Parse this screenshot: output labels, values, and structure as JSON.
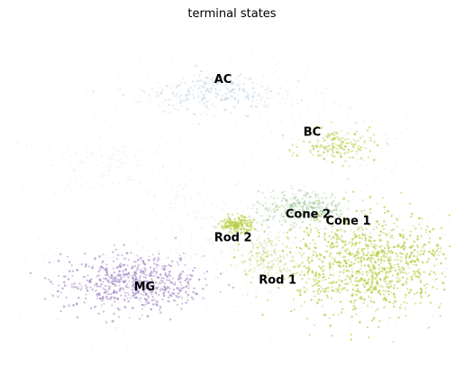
{
  "chart_data": {
    "type": "scatter",
    "title": "terminal states",
    "xlabel": "",
    "ylabel": "",
    "axes_visible": false,
    "grid": false,
    "legend": "on data",
    "embedding": "UMAP",
    "xlim": [
      0,
      100
    ],
    "ylim": [
      0,
      100
    ],
    "background_color": "#e6e6e6",
    "states": [
      {
        "name": "AC",
        "color": "#aac6dc",
        "label_pos": [
          46,
          83
        ],
        "center": [
          46,
          80
        ],
        "spread": [
          12,
          5
        ],
        "count": 220,
        "opacity": 0.5
      },
      {
        "name": "BC",
        "color": "#b6cf45",
        "label_pos": [
          66,
          67
        ],
        "center": [
          74,
          64
        ],
        "spread": [
          7,
          4
        ],
        "count": 160,
        "opacity": 0.7
      },
      {
        "name": "Cone 2",
        "color": "#8fbf8a",
        "label_pos": [
          62,
          42
        ],
        "center": [
          66,
          45
        ],
        "spread": [
          8,
          4
        ],
        "count": 300,
        "opacity": 0.5
      },
      {
        "name": "Cone 1",
        "color": "#b6cf45",
        "label_pos": [
          71,
          40
        ],
        "center": [
          80,
          28
        ],
        "spread": [
          16,
          13
        ],
        "count": 1000,
        "opacity": 0.85
      },
      {
        "name": "Rod 2",
        "color": "#b6cf45",
        "label_pos": [
          46,
          35
        ],
        "center": [
          51,
          40
        ],
        "spread": [
          3,
          2
        ],
        "count": 180,
        "opacity": 0.8
      },
      {
        "name": "Rod 1",
        "color": "#c1d67a",
        "label_pos": [
          56,
          22
        ],
        "center": [
          58,
          30
        ],
        "spread": [
          5,
          6
        ],
        "count": 180,
        "opacity": 0.5
      },
      {
        "name": "MG",
        "color": "#a48cc8",
        "label_pos": [
          28,
          20
        ],
        "center": [
          28,
          22
        ],
        "spread": [
          13,
          7
        ],
        "count": 600,
        "opacity": 0.8
      }
    ]
  }
}
